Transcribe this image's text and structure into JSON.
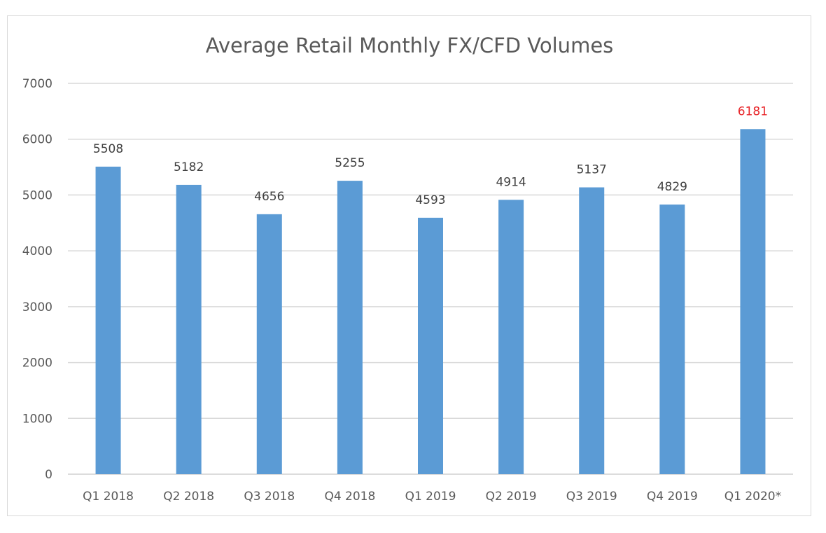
{
  "chart_data": {
    "type": "bar",
    "title": "Average Retail Monthly FX/CFD Volumes",
    "xlabel": "",
    "ylabel": "",
    "categories": [
      "Q1 2018",
      "Q2 2018",
      "Q3 2018",
      "Q4 2018",
      "Q1 2019",
      "Q2 2019",
      "Q3 2019",
      "Q4 2019",
      "Q1 2020*"
    ],
    "values": [
      5508,
      5182,
      4656,
      5255,
      4593,
      4914,
      5137,
      4829,
      6181
    ],
    "ylim": [
      0,
      7000
    ],
    "yticks": [
      0,
      1000,
      2000,
      3000,
      4000,
      5000,
      6000,
      7000
    ],
    "grid": true,
    "legend": "none",
    "bar_color": "#5b9bd5",
    "label_color": "#404040",
    "highlight_label_color": "#e8262a",
    "highlight_index": 8
  }
}
